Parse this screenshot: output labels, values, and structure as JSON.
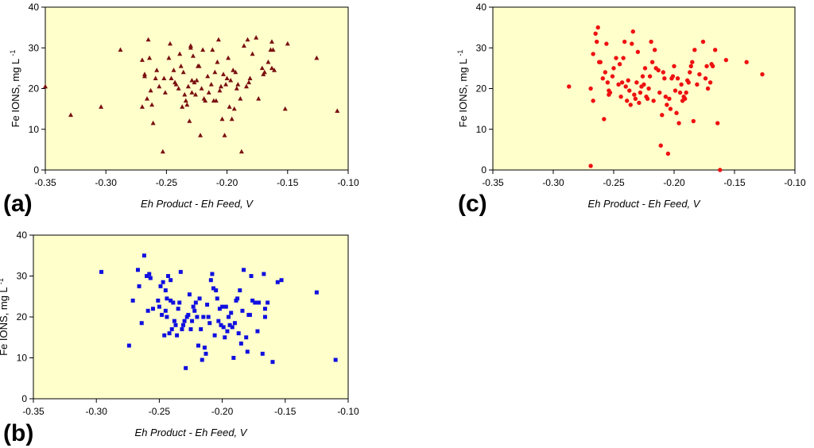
{
  "chart_data": [
    {
      "type": "scatter",
      "panel_label": "(a)",
      "marker": "triangle",
      "color": "#7a1010",
      "xlabel": "Eh Product - Eh Feed, V",
      "ylabel_main": "Fe IONS, mg L",
      "ylabel_sup": "-1",
      "xlim": [
        -0.35,
        -0.1
      ],
      "ylim": [
        0,
        40
      ],
      "xticks": [
        -0.35,
        -0.3,
        -0.25,
        -0.2,
        -0.15,
        -0.1
      ],
      "xtick_labels": [
        "-0.35",
        "-0.30",
        "-0.25",
        "-0.20",
        "-0.15",
        "-0.10"
      ],
      "yticks": [
        0,
        10,
        20,
        30,
        40
      ],
      "ytick_labels": [
        "0",
        "10",
        "20",
        "30",
        "40"
      ],
      "background": "#ffffcc",
      "points": [
        [
          -0.35,
          20.5
        ],
        [
          -0.329,
          13.5
        ],
        [
          -0.304,
          15.5
        ],
        [
          -0.288,
          29.5
        ],
        [
          -0.27,
          27.0
        ],
        [
          -0.27,
          15.5
        ],
        [
          -0.268,
          23.0
        ],
        [
          -0.268,
          23.5
        ],
        [
          -0.266,
          17.5
        ],
        [
          -0.265,
          32.0
        ],
        [
          -0.264,
          27.5
        ],
        [
          -0.263,
          19.5
        ],
        [
          -0.262,
          16.0
        ],
        [
          -0.261,
          11.5
        ],
        [
          -0.259,
          22.5
        ],
        [
          -0.258,
          24.5
        ],
        [
          -0.256,
          20.5
        ],
        [
          -0.253,
          4.5
        ],
        [
          -0.252,
          22.5
        ],
        [
          -0.251,
          19.0
        ],
        [
          -0.248,
          27.5
        ],
        [
          -0.247,
          31.0
        ],
        [
          -0.246,
          22.5
        ],
        [
          -0.244,
          24.5
        ],
        [
          -0.243,
          21.5
        ],
        [
          -0.242,
          21.0
        ],
        [
          -0.24,
          20.0
        ],
        [
          -0.239,
          28.5
        ],
        [
          -0.238,
          25.5
        ],
        [
          -0.237,
          15.5
        ],
        [
          -0.236,
          24.0
        ],
        [
          -0.235,
          18.5
        ],
        [
          -0.234,
          17.0
        ],
        [
          -0.233,
          16.0
        ],
        [
          -0.232,
          20.5
        ],
        [
          -0.231,
          12.0
        ],
        [
          -0.23,
          30.5
        ],
        [
          -0.23,
          30.0
        ],
        [
          -0.229,
          19.0
        ],
        [
          -0.229,
          22.0
        ],
        [
          -0.228,
          28.0
        ],
        [
          -0.227,
          21.5
        ],
        [
          -0.226,
          18.5
        ],
        [
          -0.225,
          22.0
        ],
        [
          -0.224,
          25.5
        ],
        [
          -0.223,
          25.5
        ],
        [
          -0.222,
          8.5
        ],
        [
          -0.221,
          20.0
        ],
        [
          -0.22,
          29.5
        ],
        [
          -0.219,
          17.5
        ],
        [
          -0.218,
          17.0
        ],
        [
          -0.216,
          23.0
        ],
        [
          -0.215,
          19.0
        ],
        [
          -0.213,
          21.0
        ],
        [
          -0.212,
          29.5
        ],
        [
          -0.211,
          17.0
        ],
        [
          -0.21,
          24.0
        ],
        [
          -0.209,
          17.0
        ],
        [
          -0.208,
          26.5
        ],
        [
          -0.207,
          32.0
        ],
        [
          -0.206,
          19.5
        ],
        [
          -0.205,
          20.5
        ],
        [
          -0.204,
          12.5
        ],
        [
          -0.203,
          23.5
        ],
        [
          -0.202,
          8.5
        ],
        [
          -0.201,
          21.0
        ],
        [
          -0.2,
          22.5
        ],
        [
          -0.199,
          27.5
        ],
        [
          -0.198,
          15.5
        ],
        [
          -0.197,
          22.0
        ],
        [
          -0.196,
          12.5
        ],
        [
          -0.195,
          24.5
        ],
        [
          -0.194,
          15.0
        ],
        [
          -0.193,
          24.0
        ],
        [
          -0.192,
          20.0
        ],
        [
          -0.191,
          21.0
        ],
        [
          -0.189,
          17.5
        ],
        [
          -0.188,
          4.5
        ],
        [
          -0.186,
          30.5
        ],
        [
          -0.184,
          20.5
        ],
        [
          -0.183,
          32.0
        ],
        [
          -0.182,
          21.5
        ],
        [
          -0.181,
          22.5
        ],
        [
          -0.179,
          28.5
        ],
        [
          -0.176,
          32.5
        ],
        [
          -0.174,
          17.5
        ],
        [
          -0.171,
          25.0
        ],
        [
          -0.17,
          23.5
        ],
        [
          -0.169,
          24.0
        ],
        [
          -0.166,
          26.5
        ],
        [
          -0.164,
          29.5
        ],
        [
          -0.163,
          25.0
        ],
        [
          -0.163,
          31.5
        ],
        [
          -0.162,
          29.5
        ],
        [
          -0.161,
          24.5
        ],
        [
          -0.152,
          15.0
        ],
        [
          -0.15,
          31.0
        ],
        [
          -0.126,
          27.5
        ],
        [
          -0.109,
          14.5
        ]
      ]
    },
    {
      "type": "scatter",
      "panel_label": "(b)",
      "marker": "square",
      "color": "#1010e0",
      "xlabel": "Eh Product - Eh Feed, V",
      "ylabel_main": "Fe IONS, mg L",
      "ylabel_sup": "-1",
      "xlim": [
        -0.35,
        -0.1
      ],
      "ylim": [
        0,
        40
      ],
      "xticks": [
        -0.35,
        -0.3,
        -0.25,
        -0.2,
        -0.15,
        -0.1
      ],
      "xtick_labels": [
        "-0.35",
        "-0.30",
        "-0.25",
        "-0.20",
        "-0.15",
        "-0.10"
      ],
      "yticks": [
        0,
        10,
        20,
        30,
        40
      ],
      "ytick_labels": [
        "0",
        "10",
        "20",
        "30",
        "40"
      ],
      "background": "#ffffcc",
      "points": [
        [
          -0.296,
          31.0
        ],
        [
          -0.274,
          13.0
        ],
        [
          -0.271,
          24.0
        ],
        [
          -0.267,
          31.5
        ],
        [
          -0.266,
          27.5
        ],
        [
          -0.264,
          18.5
        ],
        [
          -0.262,
          35.0
        ],
        [
          -0.26,
          30.0
        ],
        [
          -0.259,
          21.5
        ],
        [
          -0.258,
          30.5
        ],
        [
          -0.257,
          29.5
        ],
        [
          -0.255,
          22.0
        ],
        [
          -0.251,
          24.0
        ],
        [
          -0.25,
          22.5
        ],
        [
          -0.249,
          27.5
        ],
        [
          -0.248,
          20.5
        ],
        [
          -0.247,
          28.5
        ],
        [
          -0.246,
          15.5
        ],
        [
          -0.245,
          21.5
        ],
        [
          -0.245,
          26.5
        ],
        [
          -0.244,
          24.5
        ],
        [
          -0.244,
          20.0
        ],
        [
          -0.243,
          30.0
        ],
        [
          -0.242,
          16.0
        ],
        [
          -0.241,
          24.0
        ],
        [
          -0.241,
          29.0
        ],
        [
          -0.24,
          17.0
        ],
        [
          -0.239,
          23.5
        ],
        [
          -0.238,
          19.0
        ],
        [
          -0.237,
          18.0
        ],
        [
          -0.236,
          15.5
        ],
        [
          -0.235,
          22.0
        ],
        [
          -0.234,
          23.5
        ],
        [
          -0.233,
          31.0
        ],
        [
          -0.232,
          17.0
        ],
        [
          -0.231,
          18.0
        ],
        [
          -0.23,
          19.0
        ],
        [
          -0.229,
          7.5
        ],
        [
          -0.228,
          20.0
        ],
        [
          -0.227,
          20.5
        ],
        [
          -0.226,
          25.5
        ],
        [
          -0.225,
          17.0
        ],
        [
          -0.224,
          19.0
        ],
        [
          -0.223,
          22.5
        ],
        [
          -0.222,
          21.5
        ],
        [
          -0.221,
          23.5
        ],
        [
          -0.22,
          20.0
        ],
        [
          -0.219,
          13.0
        ],
        [
          -0.218,
          24.5
        ],
        [
          -0.217,
          17.0
        ],
        [
          -0.216,
          9.5
        ],
        [
          -0.215,
          20.0
        ],
        [
          -0.214,
          12.5
        ],
        [
          -0.213,
          11.0
        ],
        [
          -0.212,
          23.0
        ],
        [
          -0.211,
          20.0
        ],
        [
          -0.21,
          18.5
        ],
        [
          -0.209,
          29.0
        ],
        [
          -0.208,
          30.5
        ],
        [
          -0.207,
          27.0
        ],
        [
          -0.206,
          15.5
        ],
        [
          -0.205,
          26.5
        ],
        [
          -0.204,
          24.5
        ],
        [
          -0.203,
          19.0
        ],
        [
          -0.202,
          22.0
        ],
        [
          -0.201,
          18.0
        ],
        [
          -0.2,
          22.5
        ],
        [
          -0.199,
          17.5
        ],
        [
          -0.198,
          15.0
        ],
        [
          -0.197,
          22.5
        ],
        [
          -0.196,
          16.5
        ],
        [
          -0.195,
          20.0
        ],
        [
          -0.194,
          18.0
        ],
        [
          -0.193,
          21.0
        ],
        [
          -0.192,
          17.5
        ],
        [
          -0.191,
          10.0
        ],
        [
          -0.19,
          18.5
        ],
        [
          -0.189,
          24.0
        ],
        [
          -0.188,
          24.5
        ],
        [
          -0.187,
          16.0
        ],
        [
          -0.186,
          26.5
        ],
        [
          -0.185,
          13.5
        ],
        [
          -0.184,
          21.5
        ],
        [
          -0.183,
          31.5
        ],
        [
          -0.181,
          15.0
        ],
        [
          -0.18,
          11.5
        ],
        [
          -0.179,
          20.5
        ],
        [
          -0.178,
          20.5
        ],
        [
          -0.177,
          30.0
        ],
        [
          -0.176,
          24.0
        ],
        [
          -0.174,
          23.5
        ],
        [
          -0.172,
          16.5
        ],
        [
          -0.171,
          23.5
        ],
        [
          -0.168,
          11.0
        ],
        [
          -0.167,
          30.5
        ],
        [
          -0.166,
          22.0
        ],
        [
          -0.166,
          20.0
        ],
        [
          -0.164,
          23.5
        ],
        [
          -0.16,
          9.0
        ],
        [
          -0.156,
          28.5
        ],
        [
          -0.153,
          29.0
        ],
        [
          -0.125,
          26.0
        ],
        [
          -0.11,
          9.5
        ]
      ]
    },
    {
      "type": "scatter",
      "panel_label": "(c)",
      "marker": "circle",
      "color": "#ee1111",
      "xlabel": "Eh Product - Eh Feed, V",
      "ylabel_main": "Fe IONS, mg L",
      "ylabel_sup": "-1",
      "xlim": [
        -0.35,
        -0.1
      ],
      "ylim": [
        0,
        40
      ],
      "xticks": [
        -0.35,
        -0.3,
        -0.25,
        -0.2,
        -0.15,
        -0.1
      ],
      "xtick_labels": [
        "-0.35",
        "-0.30",
        "-0.25",
        "-0.20",
        "-0.15",
        "-0.10"
      ],
      "yticks": [
        0,
        10,
        20,
        30,
        40
      ],
      "ytick_labels": [
        "0",
        "10",
        "20",
        "30",
        "40"
      ],
      "background": "#ffffcc",
      "points": [
        [
          -0.287,
          20.5
        ],
        [
          -0.269,
          1.0
        ],
        [
          -0.269,
          20.0
        ],
        [
          -0.267,
          17.0
        ],
        [
          -0.267,
          28.5
        ],
        [
          -0.265,
          33.5
        ],
        [
          -0.264,
          31.5
        ],
        [
          -0.263,
          35.0
        ],
        [
          -0.262,
          26.5
        ],
        [
          -0.261,
          26.5
        ],
        [
          -0.259,
          22.5
        ],
        [
          -0.258,
          12.5
        ],
        [
          -0.257,
          24.0
        ],
        [
          -0.256,
          31.0
        ],
        [
          -0.255,
          21.5
        ],
        [
          -0.254,
          18.5
        ],
        [
          -0.254,
          19.5
        ],
        [
          -0.253,
          19.0
        ],
        [
          -0.251,
          23.0
        ],
        [
          -0.25,
          25.0
        ],
        [
          -0.248,
          27.5
        ],
        [
          -0.246,
          21.0
        ],
        [
          -0.245,
          26.0
        ],
        [
          -0.244,
          18.0
        ],
        [
          -0.243,
          21.5
        ],
        [
          -0.242,
          27.5
        ],
        [
          -0.241,
          31.5
        ],
        [
          -0.24,
          20.5
        ],
        [
          -0.239,
          17.0
        ],
        [
          -0.238,
          22.0
        ],
        [
          -0.237,
          19.5
        ],
        [
          -0.236,
          16.0
        ],
        [
          -0.235,
          31.0
        ],
        [
          -0.234,
          34.0
        ],
        [
          -0.233,
          18.5
        ],
        [
          -0.232,
          17.5
        ],
        [
          -0.231,
          21.5
        ],
        [
          -0.23,
          29.0
        ],
        [
          -0.229,
          16.5
        ],
        [
          -0.228,
          19.0
        ],
        [
          -0.227,
          20.5
        ],
        [
          -0.226,
          23.0
        ],
        [
          -0.225,
          21.0
        ],
        [
          -0.224,
          25.0
        ],
        [
          -0.223,
          18.0
        ],
        [
          -0.222,
          17.5
        ],
        [
          -0.221,
          20.0
        ],
        [
          -0.22,
          23.0
        ],
        [
          -0.219,
          31.5
        ],
        [
          -0.218,
          26.5
        ],
        [
          -0.217,
          17.0
        ],
        [
          -0.216,
          29.5
        ],
        [
          -0.215,
          25.0
        ],
        [
          -0.213,
          24.5
        ],
        [
          -0.212,
          19.0
        ],
        [
          -0.211,
          6.0
        ],
        [
          -0.21,
          13.5
        ],
        [
          -0.209,
          24.0
        ],
        [
          -0.208,
          22.5
        ],
        [
          -0.207,
          18.0
        ],
        [
          -0.206,
          16.0
        ],
        [
          -0.205,
          4.0
        ],
        [
          -0.204,
          17.5
        ],
        [
          -0.203,
          15.0
        ],
        [
          -0.202,
          22.5
        ],
        [
          -0.201,
          23.0
        ],
        [
          -0.2,
          25.5
        ],
        [
          -0.199,
          19.5
        ],
        [
          -0.198,
          14.0
        ],
        [
          -0.197,
          22.5
        ],
        [
          -0.196,
          11.5
        ],
        [
          -0.195,
          19.0
        ],
        [
          -0.194,
          21.0
        ],
        [
          -0.193,
          17.0
        ],
        [
          -0.192,
          18.0
        ],
        [
          -0.191,
          17.5
        ],
        [
          -0.19,
          19.0
        ],
        [
          -0.189,
          22.0
        ],
        [
          -0.188,
          21.5
        ],
        [
          -0.187,
          24.0
        ],
        [
          -0.186,
          25.5
        ],
        [
          -0.185,
          26.5
        ],
        [
          -0.184,
          12.0
        ],
        [
          -0.183,
          29.5
        ],
        [
          -0.181,
          21.0
        ],
        [
          -0.179,
          23.5
        ],
        [
          -0.176,
          31.5
        ],
        [
          -0.174,
          22.5
        ],
        [
          -0.173,
          25.5
        ],
        [
          -0.172,
          20.0
        ],
        [
          -0.17,
          21.5
        ],
        [
          -0.169,
          26.0
        ],
        [
          -0.168,
          25.5
        ],
        [
          -0.166,
          29.5
        ],
        [
          -0.164,
          11.5
        ],
        [
          -0.162,
          0.0
        ],
        [
          -0.157,
          27.0
        ],
        [
          -0.14,
          26.5
        ],
        [
          -0.127,
          23.5
        ]
      ]
    }
  ]
}
